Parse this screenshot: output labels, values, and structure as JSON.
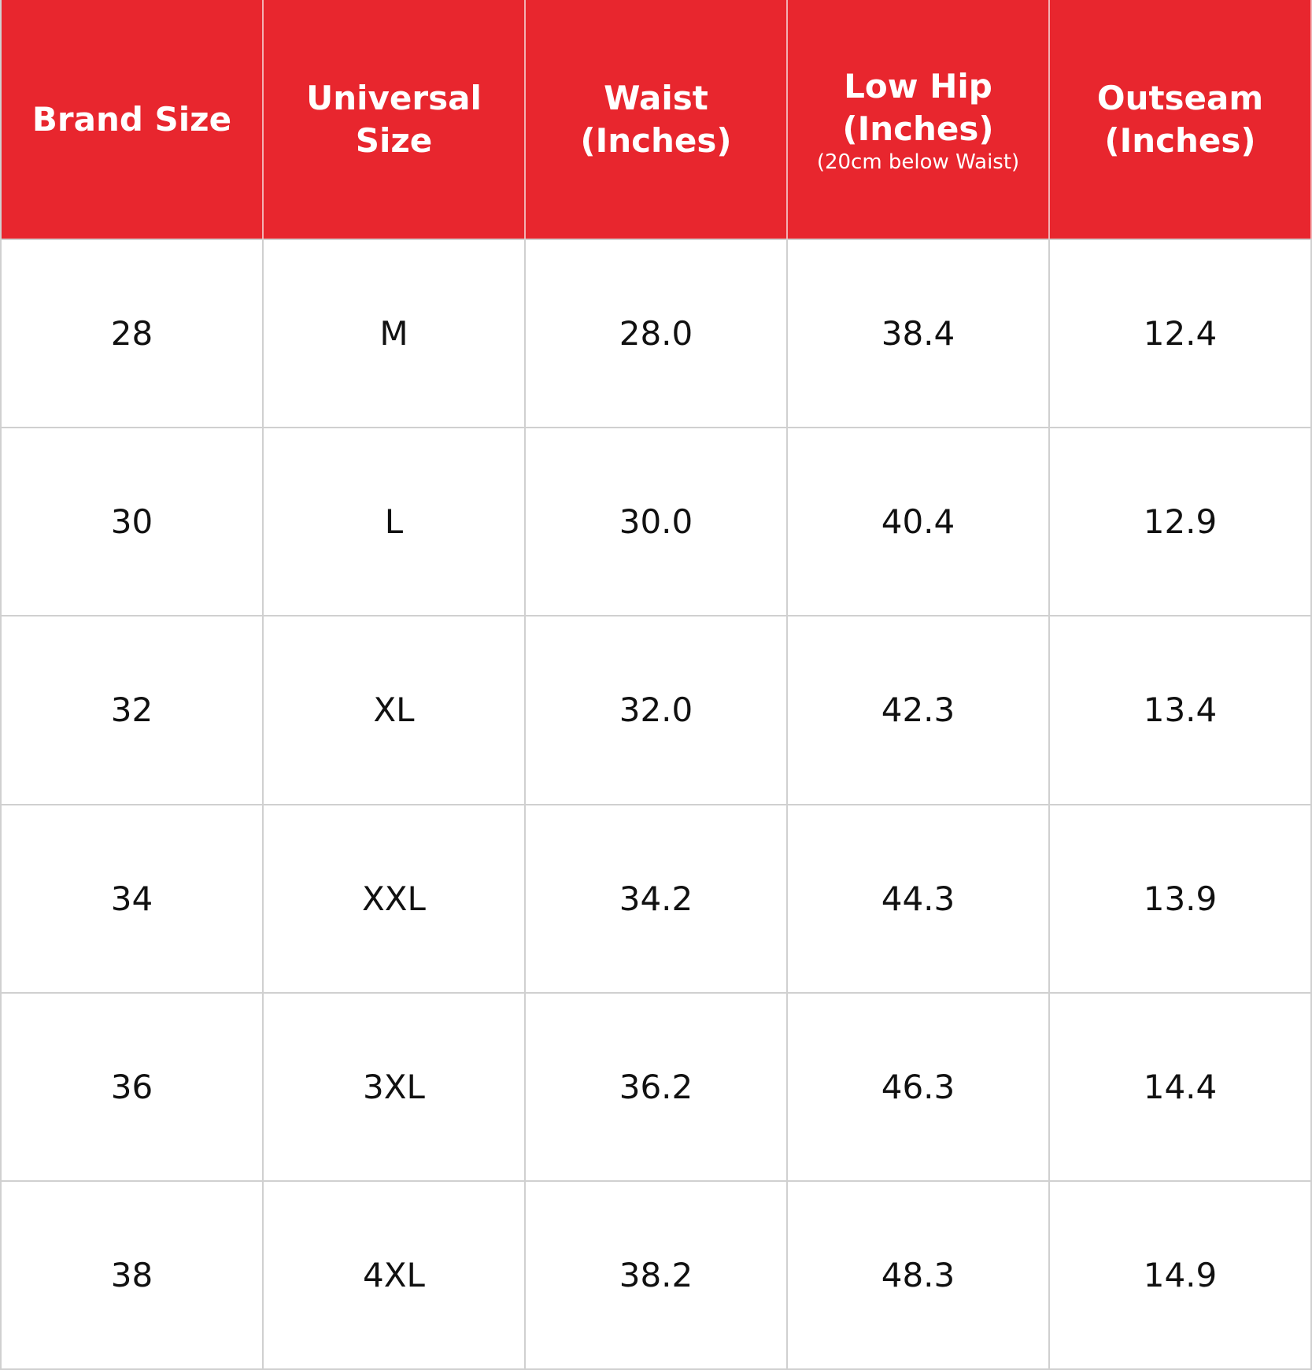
{
  "table": {
    "header": [
      {
        "lines": [
          "Brand Size"
        ]
      },
      {
        "lines": [
          "Universal Size"
        ]
      },
      {
        "lines": [
          "Waist",
          "(Inches)"
        ]
      },
      {
        "lines": [
          "Low Hip",
          "(Inches)"
        ],
        "note": "(20cm below Waist)"
      },
      {
        "lines": [
          "Outseam",
          "(Inches)"
        ]
      }
    ],
    "rows": [
      [
        "28",
        "M",
        "28.0",
        "38.4",
        "12.4"
      ],
      [
        "30",
        "L",
        "30.0",
        "40.4",
        "12.9"
      ],
      [
        "32",
        "XL",
        "32.0",
        "42.3",
        "13.4"
      ],
      [
        "34",
        "XXL",
        "34.2",
        "44.3",
        "13.9"
      ],
      [
        "36",
        "3XL",
        "36.2",
        "46.3",
        "14.4"
      ],
      [
        "38",
        "4XL",
        "38.2",
        "48.3",
        "14.9"
      ]
    ]
  }
}
